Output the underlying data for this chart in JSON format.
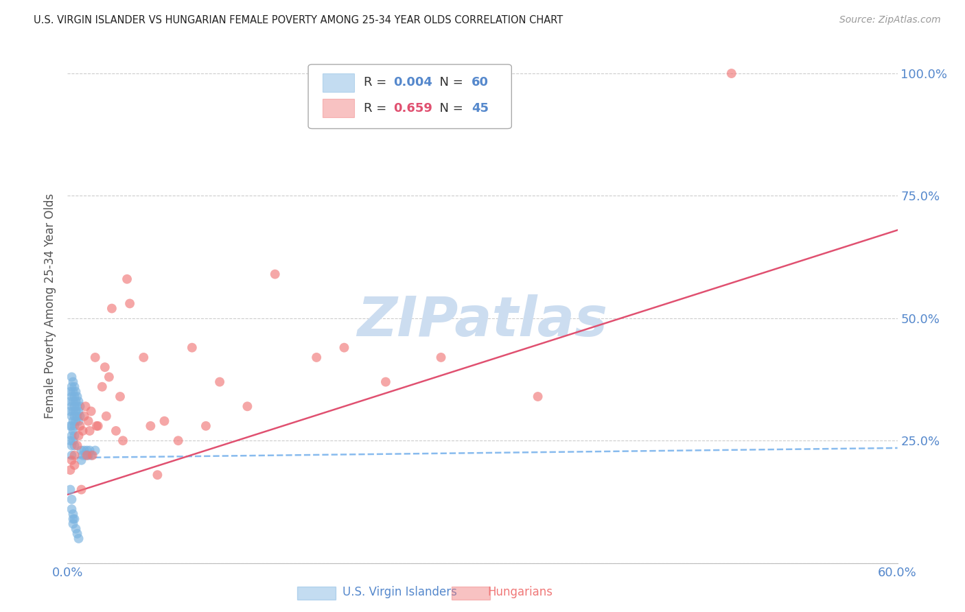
{
  "title": "U.S. VIRGIN ISLANDER VS HUNGARIAN FEMALE POVERTY AMONG 25-34 YEAR OLDS CORRELATION CHART",
  "source": "Source: ZipAtlas.com",
  "xlabel_label": "U.S. Virgin Islanders",
  "ylabel_label": "Female Poverty Among 25-34 Year Olds",
  "xlabel2_label": "Hungarians",
  "xlim": [
    0.0,
    0.6
  ],
  "ylim": [
    0.0,
    1.05
  ],
  "x_ticks": [
    0.0,
    0.1,
    0.2,
    0.3,
    0.4,
    0.5,
    0.6
  ],
  "x_tick_labels": [
    "0.0%",
    "",
    "",
    "",
    "",
    "",
    "60.0%"
  ],
  "y_ticks": [
    0.0,
    0.25,
    0.5,
    0.75,
    1.0
  ],
  "y_tick_labels_right": [
    "",
    "25.0%",
    "50.0%",
    "75.0%",
    "100.0%"
  ],
  "legend_R1": "0.004",
  "legend_N1": "60",
  "legend_R2": "0.659",
  "legend_N2": "45",
  "blue_color": "#7ab3e0",
  "pink_color": "#f07878",
  "blue_line_color": "#88bbee",
  "pink_line_color": "#e05070",
  "axis_color": "#5588cc",
  "grid_color": "#cccccc",
  "watermark_color": "#ccddf0",
  "blue_scatter_x": [
    0.002,
    0.002,
    0.002,
    0.002,
    0.002,
    0.003,
    0.003,
    0.003,
    0.003,
    0.003,
    0.003,
    0.003,
    0.003,
    0.003,
    0.004,
    0.004,
    0.004,
    0.004,
    0.004,
    0.004,
    0.004,
    0.005,
    0.005,
    0.005,
    0.005,
    0.005,
    0.005,
    0.005,
    0.006,
    0.006,
    0.006,
    0.006,
    0.007,
    0.007,
    0.007,
    0.008,
    0.008,
    0.008,
    0.009,
    0.009,
    0.01,
    0.01,
    0.011,
    0.012,
    0.013,
    0.014,
    0.015,
    0.016,
    0.017,
    0.02,
    0.002,
    0.003,
    0.003,
    0.004,
    0.004,
    0.004,
    0.005,
    0.006,
    0.007,
    0.008
  ],
  "blue_scatter_y": [
    0.35,
    0.33,
    0.31,
    0.28,
    0.25,
    0.38,
    0.36,
    0.34,
    0.32,
    0.3,
    0.28,
    0.26,
    0.24,
    0.22,
    0.37,
    0.35,
    0.33,
    0.31,
    0.29,
    0.27,
    0.25,
    0.36,
    0.34,
    0.32,
    0.3,
    0.28,
    0.26,
    0.24,
    0.35,
    0.33,
    0.31,
    0.29,
    0.34,
    0.32,
    0.3,
    0.33,
    0.31,
    0.29,
    0.32,
    0.3,
    0.23,
    0.21,
    0.22,
    0.23,
    0.22,
    0.23,
    0.22,
    0.23,
    0.22,
    0.23,
    0.15,
    0.13,
    0.11,
    0.1,
    0.09,
    0.08,
    0.09,
    0.07,
    0.06,
    0.05
  ],
  "pink_scatter_x": [
    0.002,
    0.003,
    0.005,
    0.005,
    0.007,
    0.008,
    0.009,
    0.01,
    0.011,
    0.012,
    0.013,
    0.014,
    0.015,
    0.016,
    0.017,
    0.018,
    0.02,
    0.021,
    0.022,
    0.025,
    0.027,
    0.028,
    0.03,
    0.032,
    0.035,
    0.038,
    0.04,
    0.043,
    0.045,
    0.055,
    0.06,
    0.065,
    0.07,
    0.08,
    0.09,
    0.1,
    0.11,
    0.13,
    0.15,
    0.18,
    0.2,
    0.23,
    0.27,
    0.34,
    0.48
  ],
  "pink_scatter_y": [
    0.19,
    0.21,
    0.22,
    0.2,
    0.24,
    0.26,
    0.28,
    0.15,
    0.27,
    0.3,
    0.32,
    0.22,
    0.29,
    0.27,
    0.31,
    0.22,
    0.42,
    0.28,
    0.28,
    0.36,
    0.4,
    0.3,
    0.38,
    0.52,
    0.27,
    0.34,
    0.25,
    0.58,
    0.53,
    0.42,
    0.28,
    0.18,
    0.29,
    0.25,
    0.44,
    0.28,
    0.37,
    0.32,
    0.59,
    0.42,
    0.44,
    0.37,
    0.42,
    0.34,
    1.0
  ],
  "blue_trend_x": [
    0.0,
    0.6
  ],
  "blue_trend_y": [
    0.215,
    0.235
  ],
  "pink_trend_x": [
    0.0,
    0.6
  ],
  "pink_trend_y": [
    0.14,
    0.68
  ]
}
